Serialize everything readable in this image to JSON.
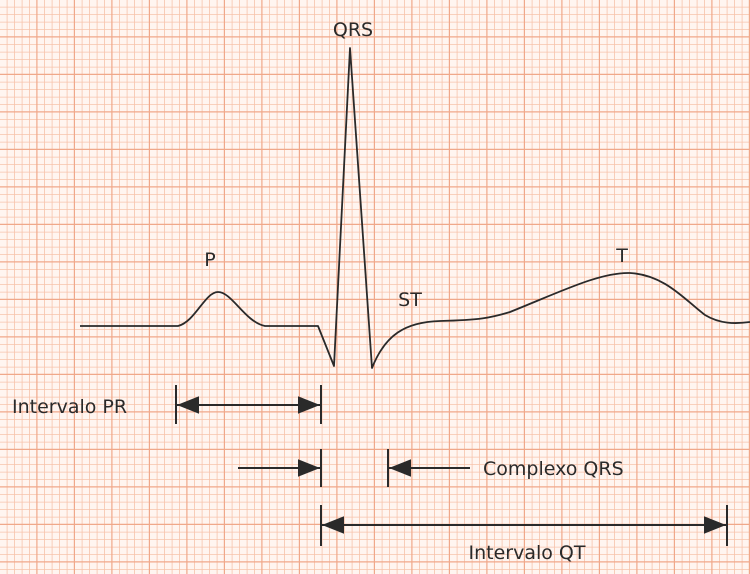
{
  "colors": {
    "grid_minor": "#f7c9b4",
    "grid_major": "#f2ad90",
    "background": "#fff3ee",
    "trace": "#2a2a2a"
  },
  "labels": {
    "qrs": "QRS",
    "p": "P",
    "st": "ST",
    "t": "T",
    "pr_interval": "Intervalo PR",
    "qrs_complex": "Complexo QRS",
    "qt_interval": "Intervalo QT"
  }
}
